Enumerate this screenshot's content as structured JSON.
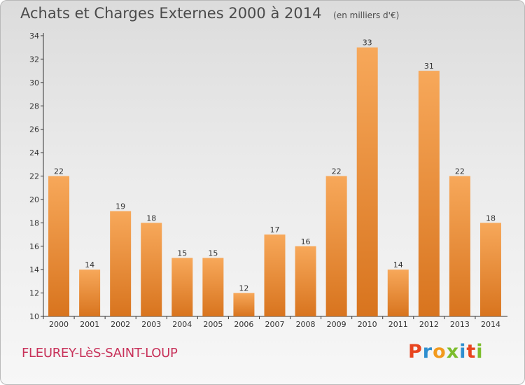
{
  "header": {
    "title": "Achats et Charges Externes 2000 à 2014",
    "subtitle": "(en milliers d'€)"
  },
  "footer": {
    "town": "FLEUREY-LèS-SAINT-LOUP",
    "logo": "Proxiti"
  },
  "colors": {
    "bar_light": "#f7a85a",
    "bar_dark": "#d8741e",
    "axis": "#333333",
    "grid": "#cfcfcf",
    "town_text": "#c8325a",
    "logo_letters": [
      "#e8451f",
      "#2e8fd0",
      "#f29a1d",
      "#7cbd2c",
      "#2e8fd0",
      "#e8451f",
      "#7cbd2c"
    ]
  },
  "chart_data": {
    "type": "bar",
    "title": "Achats et Charges Externes 2000 à 2014",
    "subtitle": "(en milliers d'€)",
    "categories": [
      "2000",
      "2001",
      "2002",
      "2003",
      "2004",
      "2005",
      "2006",
      "2007",
      "2008",
      "2009",
      "2010",
      "2011",
      "2012",
      "2013",
      "2014"
    ],
    "values": [
      22,
      14,
      19,
      18,
      15,
      15,
      12,
      17,
      16,
      22,
      33,
      14,
      31,
      22,
      18
    ],
    "ylim": [
      10,
      34
    ],
    "yticks": [
      10,
      12,
      14,
      16,
      18,
      20,
      22,
      24,
      26,
      28,
      30,
      32,
      34
    ],
    "grid": false,
    "xlabel": "",
    "ylabel": ""
  }
}
